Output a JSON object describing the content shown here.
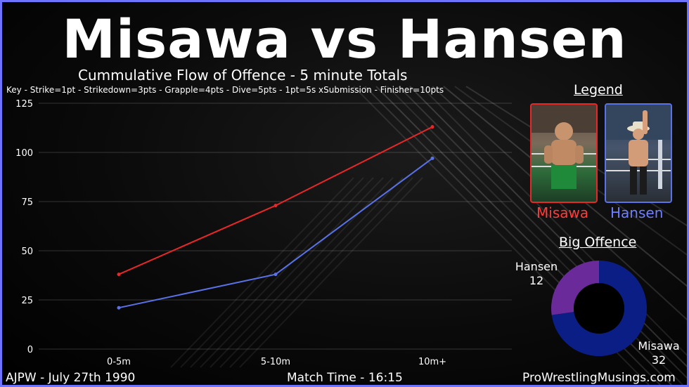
{
  "title": "Misawa vs Hansen",
  "subtitle": "Cummulative Flow of Offence - 5 minute Totals",
  "key": "Key - Strike=1pt - Strikedown=3pts - Grapple=4pts - Dive=5pts - 1pt=5s xSubmission - Finisher=10pts",
  "legend": {
    "title": "Legend",
    "misawa": "Misawa",
    "hansen": "Hansen"
  },
  "big_offence": {
    "title": "Big Offence",
    "hansen_label": "Hansen",
    "hansen_value": "12",
    "misawa_label": "Misawa",
    "misawa_value": "32"
  },
  "footer": {
    "left": "AJPW - July 27th 1990",
    "center": "Match Time - 16:15",
    "right": "ProWrestlingMusings.com"
  },
  "colors": {
    "misawa": "#e82828",
    "hansen": "#5a72e8",
    "donut_misawa": "#0b1e86",
    "donut_hansen": "#6a2a9a",
    "border": "#6f74ff"
  },
  "chart_data": [
    {
      "type": "line",
      "categories": [
        "0-5m",
        "5-10m",
        "10m+"
      ],
      "series": [
        {
          "name": "Misawa",
          "color": "#e82828",
          "values": [
            38,
            73,
            113
          ]
        },
        {
          "name": "Hansen",
          "color": "#5a72e8",
          "values": [
            21,
            38,
            97
          ]
        }
      ],
      "ylim": [
        0,
        125
      ],
      "yticks": [
        0,
        25,
        50,
        75,
        100,
        125
      ],
      "grid": true
    },
    {
      "type": "pie",
      "donut": true,
      "labels": [
        "Misawa",
        "Hansen"
      ],
      "values": [
        32,
        12
      ]
    }
  ]
}
